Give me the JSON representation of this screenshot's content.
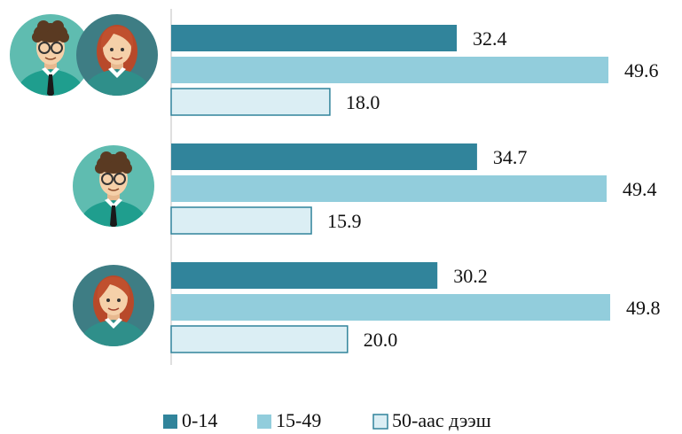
{
  "chart_data": {
    "type": "barh",
    "categories": [
      null,
      null,
      null
    ],
    "series": [
      {
        "name": "0-14",
        "color": "#31849b",
        "values": [
          32.4,
          34.7,
          30.2
        ]
      },
      {
        "name": "15-49",
        "color": "#92cddc",
        "values": [
          49.6,
          49.4,
          49.8
        ]
      },
      {
        "name": "50-аас дээш",
        "color": "#dbeef4",
        "edgecolor": "#31849b",
        "values": [
          18.0,
          15.9,
          20.0
        ],
        "value_labels": [
          "18.0",
          "15.9",
          "20.0"
        ]
      }
    ],
    "legend": "bottom"
  }
}
